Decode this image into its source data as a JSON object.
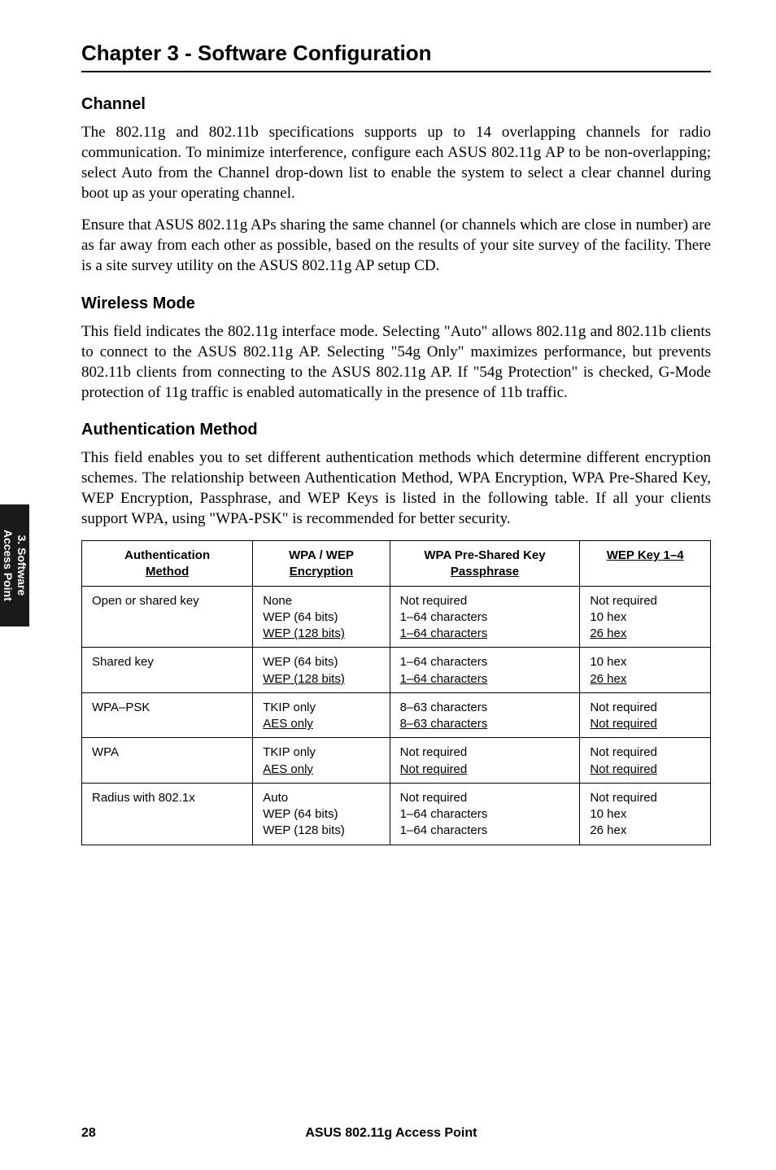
{
  "chapter_title": "Chapter 3 - Software Configuration",
  "side_tab": {
    "line1": "3. Software",
    "line2": "Access Point"
  },
  "sections": {
    "channel": {
      "heading": "Channel",
      "p1": "The 802.11g and 802.11b specifications supports up to 14 overlapping channels for radio communication. To minimize interference, configure each ASUS 802.11g AP to be non-overlapping; select Auto from the Channel drop-down list to enable the system to select a clear channel during boot up as your operating channel.",
      "p2": "Ensure that ASUS 802.11g APs sharing the same channel (or channels which are close in number) are as far away from each other as possible, based on the results of your site survey of the facility. There is a site survey utility on the ASUS 802.11g AP setup CD."
    },
    "wireless": {
      "heading": "Wireless Mode",
      "p1": "This field indicates the 802.11g interface mode. Selecting \"Auto\" allows 802.11g and 802.11b clients to connect to the ASUS 802.11g AP. Selecting \"54g Only\" maximizes performance, but prevents 802.11b clients from connecting to the ASUS 802.11g AP. If \"54g Protection\" is checked, G-Mode protection of 11g traffic is enabled automatically in the presence of 11b traffic."
    },
    "auth": {
      "heading": "Authentication Method",
      "p1": "This field enables you to set different authentication methods which determine different encryption schemes. The relationship between Authentication Method, WPA Encryption, WPA Pre-Shared Key, WEP Encryption, Passphrase, and WEP Keys is listed in the following table. If all your clients support WPA, using \"WPA-PSK\" is recommended for better security."
    }
  },
  "table": {
    "headers": [
      {
        "line1": "Authentication",
        "line2": "Method"
      },
      {
        "line1": "WPA / WEP",
        "line2": "Encryption"
      },
      {
        "line1": "WPA Pre-Shared Key",
        "line2": "Passphrase"
      },
      {
        "line1": "",
        "line2": "WEP Key 1–4"
      }
    ],
    "rows": [
      {
        "c0": {
          "lines": [
            "Open or shared key"
          ],
          "underline_last": false
        },
        "c1": {
          "lines": [
            "None",
            "WEP (64 bits)",
            "WEP (128 bits)"
          ],
          "underline_last": true
        },
        "c2": {
          "lines": [
            "Not required",
            "1–64 characters",
            "1–64 characters"
          ],
          "underline_last": true
        },
        "c3": {
          "lines": [
            "Not required",
            "10 hex",
            "26 hex"
          ],
          "underline_last": true
        }
      },
      {
        "c0": {
          "lines": [
            "Shared key"
          ],
          "underline_last": false
        },
        "c1": {
          "lines": [
            "WEP (64 bits)",
            "WEP (128 bits)"
          ],
          "underline_last": true
        },
        "c2": {
          "lines": [
            "1–64 characters",
            "1–64 characters"
          ],
          "underline_last": true
        },
        "c3": {
          "lines": [
            "10 hex",
            "26 hex"
          ],
          "underline_last": true
        }
      },
      {
        "c0": {
          "lines": [
            "WPA–PSK"
          ],
          "underline_last": false
        },
        "c1": {
          "lines": [
            "TKIP only",
            "AES only"
          ],
          "underline_last": true
        },
        "c2": {
          "lines": [
            "8–63 characters",
            "8–63 characters"
          ],
          "underline_last": true
        },
        "c3": {
          "lines": [
            "Not required",
            "Not required"
          ],
          "underline_last": true
        }
      },
      {
        "c0": {
          "lines": [
            "WPA"
          ],
          "underline_last": false
        },
        "c1": {
          "lines": [
            "TKIP only",
            "AES only"
          ],
          "underline_last": true
        },
        "c2": {
          "lines": [
            "Not required",
            "Not required"
          ],
          "underline_last": true
        },
        "c3": {
          "lines": [
            "Not required",
            "Not required"
          ],
          "underline_last": true
        }
      },
      {
        "c0": {
          "lines": [
            "Radius with 802.1x"
          ],
          "underline_last": false
        },
        "c1": {
          "lines": [
            "Auto",
            "WEP (64 bits)",
            "WEP (128 bits)"
          ],
          "underline_last": false
        },
        "c2": {
          "lines": [
            "Not required",
            "1–64 characters",
            "1–64 characters"
          ],
          "underline_last": false
        },
        "c3": {
          "lines": [
            "Not required",
            "10 hex",
            "26 hex"
          ],
          "underline_last": false
        }
      }
    ]
  },
  "footer": {
    "page": "28",
    "title": "ASUS 802.11g Access Point"
  }
}
